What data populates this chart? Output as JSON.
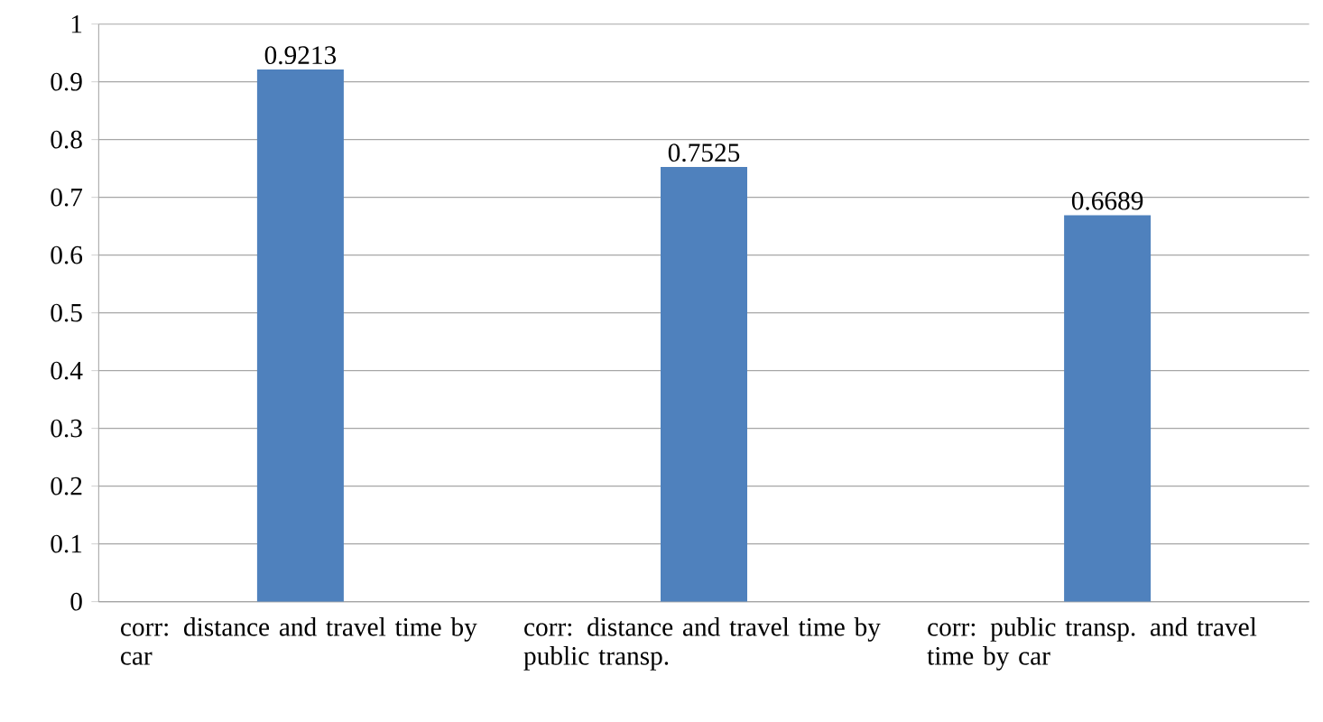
{
  "chart_data": {
    "type": "bar",
    "categories": [
      "corr: distance and travel time by car",
      "corr: distance and travel time by public transp.",
      "corr: public transp. and travel time by car"
    ],
    "values": [
      0.9213,
      0.7525,
      0.6689
    ],
    "color": "#4f81bd",
    "ylim": [
      0,
      1
    ],
    "yticks": [
      0,
      0.1,
      0.2,
      0.3,
      0.4,
      0.5,
      0.6,
      0.7,
      0.8,
      0.9,
      1
    ],
    "grid": "y",
    "data_labels": true
  }
}
